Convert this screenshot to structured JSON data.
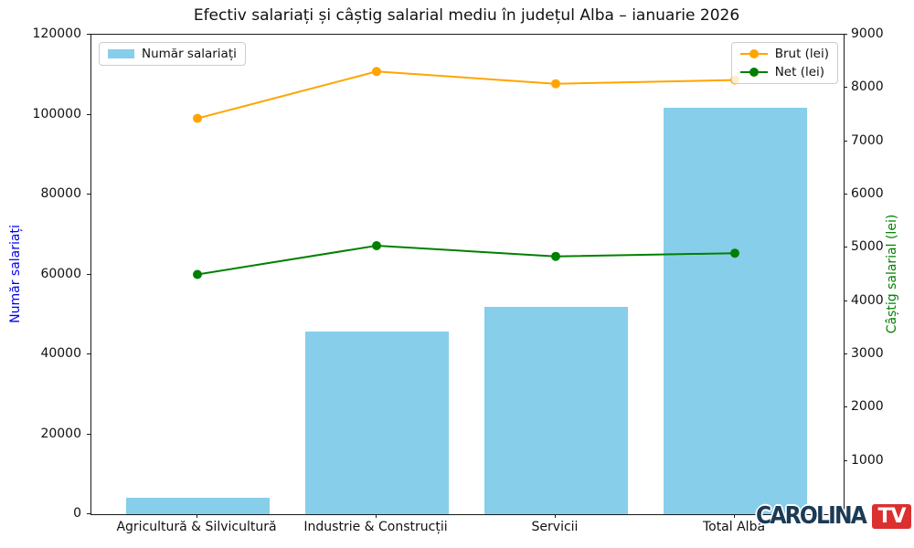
{
  "title": "Efectiv salariați și câștig salarial mediu în județul Alba – ianuarie 2026",
  "legend_bars": {
    "label": "Număr salariați"
  },
  "legend_lines": {
    "items": [
      {
        "label": "Brut (lei)",
        "color": "#FFA500"
      },
      {
        "label": "Net (lei)",
        "color": "#008000"
      }
    ]
  },
  "watermark": {
    "name": "CAROLINA",
    "badge": "TV"
  },
  "colors": {
    "bar": "#87CEEB",
    "brut_line": "#FFA500",
    "net_line": "#008000",
    "left_axis_label": "#0000ee",
    "right_axis_label": "#008000",
    "watermark_navy": "#1b3a55",
    "watermark_red": "#dc2f2f"
  },
  "chart_data": {
    "type": "bar+line combo",
    "title": "Efectiv salariați și câștig salarial mediu în județul Alba – ianuarie 2026",
    "categories": [
      "Agricultură & Silvicultură",
      "Industrie & Construcții",
      "Servicii",
      "Total Alba"
    ],
    "series": [
      {
        "name": "Număr salariați",
        "type": "bar",
        "axis": "left",
        "color": "#87CEEB",
        "values": [
          4100,
          45700,
          51900,
          101700
        ]
      },
      {
        "name": "Brut (lei)",
        "type": "line",
        "axis": "right",
        "color": "#FFA500",
        "values": [
          7430,
          8310,
          8080,
          8150
        ]
      },
      {
        "name": "Net (lei)",
        "type": "line",
        "axis": "right",
        "color": "#008000",
        "values": [
          4500,
          5040,
          4840,
          4900
        ]
      }
    ],
    "left_axis": {
      "label": "Număr salariați",
      "min": 0,
      "max": 120000,
      "tick_step": 20000,
      "color": "#0000ee"
    },
    "right_axis": {
      "label": "Câștig salarial (lei)",
      "min": 0,
      "max": 9000,
      "tick_step": 1000,
      "color": "#008000",
      "zero_label_hidden_by_watermark": true
    },
    "grid": false,
    "legend_positions": {
      "bars": "upper left",
      "lines": "upper right"
    }
  }
}
